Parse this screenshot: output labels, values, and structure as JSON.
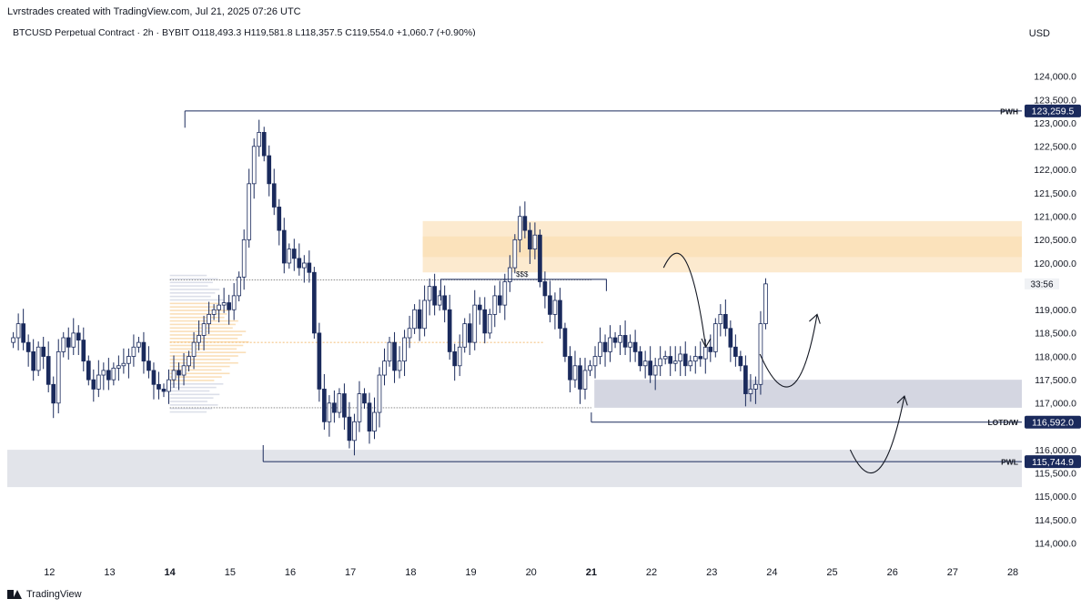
{
  "header": {
    "attribution": "Lvrstrades created with TradingView.com, Jul 21, 2025 07:26 UTC",
    "symbol": "BTCUSD Perpetual Contract · 2h · BYBIT",
    "open": "O118,493.3",
    "high": "H119,581.8",
    "low": "L118,357.5",
    "close": "C119,554.0",
    "change": "+1,060.7 (+0.90%)"
  },
  "currency": "USD",
  "footer": {
    "brand": "TradingView"
  },
  "colors": {
    "bull": "#ffffff",
    "bear": "#1a2a5c",
    "line": "#1a2a5c",
    "supply_zone": "#f9d9a8",
    "demand_zone": "#c9ccd9",
    "pwl_zone": "#e2e4ea"
  },
  "chart_data": {
    "type": "candlestick",
    "y_axis": {
      "ylim": [
        113700,
        124700
      ],
      "ticks": [
        114000,
        114500,
        115000,
        115500,
        116000,
        116500,
        117000,
        117500,
        118000,
        118500,
        119000,
        119500,
        120000,
        120500,
        121000,
        121500,
        122000,
        122500,
        123000,
        123500,
        124000
      ],
      "tick_labels": [
        "114,000.0",
        "114,500.0",
        "115,000.0",
        "115,500.0",
        "116,000.0",
        "",
        "117,000.0",
        "117,500.0",
        "118,000.0",
        "118,500.0",
        "119,000.0",
        "",
        "120,000.0",
        "120,500.0",
        "121,000.0",
        "121,500.0",
        "122,000.0",
        "122,500.0",
        "123,000.0",
        "123,500.0",
        "124,000.0"
      ]
    },
    "x_axis": {
      "range": [
        11.3,
        28.15
      ],
      "ticks": [
        12,
        13,
        14,
        15,
        16,
        17,
        18,
        19,
        20,
        21,
        22,
        23,
        24,
        25,
        26,
        27,
        28
      ],
      "tick_labels": [
        "12",
        "13",
        "14",
        "15",
        "16",
        "17",
        "18",
        "19",
        "20",
        "21",
        "22",
        "23",
        "24",
        "25",
        "26",
        "27",
        "28"
      ],
      "bold_ticks": [
        "14",
        "21"
      ]
    },
    "candles": {
      "start_day": 11.4,
      "interval_days": 0.0833,
      "closes": [
        118400,
        118700,
        118300,
        118100,
        117700,
        118200,
        118000,
        117400,
        117000,
        118100,
        118400,
        118200,
        118500,
        118350,
        117900,
        117500,
        117300,
        117600,
        117700,
        117500,
        117750,
        117800,
        117850,
        118000,
        118200,
        118300,
        117900,
        117700,
        117400,
        117300,
        117250,
        117500,
        117700,
        117600,
        117800,
        118000,
        118300,
        118450,
        118700,
        118900,
        119000,
        119100,
        119150,
        119000,
        119300,
        119700,
        120500,
        121700,
        122500,
        122800,
        122300,
        121700,
        121200,
        120700,
        120000,
        120300,
        120100,
        119900,
        120000,
        119800,
        118500,
        117300,
        116600,
        117000,
        116800,
        117200,
        116700,
        116200,
        116600,
        117200,
        117000,
        116400,
        116800,
        117600,
        117900,
        118300,
        117700,
        117900,
        118400,
        118600,
        119000,
        118600,
        119200,
        119500,
        119100,
        119300,
        119000,
        118100,
        117800,
        118200,
        118700,
        118300,
        119100,
        119000,
        118500,
        118900,
        119300,
        119100,
        119600,
        119900,
        120500,
        121000,
        120700,
        120300,
        120600,
        119600,
        119300,
        118900,
        119200,
        118600,
        118000,
        117500,
        117800,
        117300,
        117700,
        117800,
        118000,
        118300,
        118100,
        118400,
        118300,
        118450,
        118200,
        118300,
        118100,
        117800,
        117900,
        117600,
        117800,
        117950,
        118000,
        117850,
        117900,
        118050,
        117800,
        117900,
        118000,
        117950,
        118200,
        118100,
        118700,
        118900,
        118600,
        118200,
        118000,
        117800,
        117200,
        117300,
        117400,
        118700,
        119554
      ],
      "open": 118300
    },
    "levels": [
      {
        "label": "PWH",
        "value": 123259.5,
        "value_label": "123,259.5"
      },
      {
        "label": "LOTD/W",
        "value": 116592.0,
        "value_label": "116,592.0"
      },
      {
        "label": "PWL",
        "value": 115744.9,
        "value_label": "115,744.9"
      }
    ],
    "annotations": [
      {
        "text": "$$$",
        "value": 119650
      },
      {
        "text": "33:56",
        "note": "countdown"
      }
    ],
    "zones": [
      {
        "kind": "supply",
        "from_day": 18.2,
        "to_day": 28.3,
        "low": 119800,
        "high": 120900
      },
      {
        "kind": "demand",
        "from_day": 21.05,
        "to_day": 28.3,
        "low": 116900,
        "high": 117500
      },
      {
        "kind": "pwl-range",
        "from_day": 11.3,
        "to_day": 28.3,
        "low": 115200,
        "high": 116000
      }
    ]
  }
}
